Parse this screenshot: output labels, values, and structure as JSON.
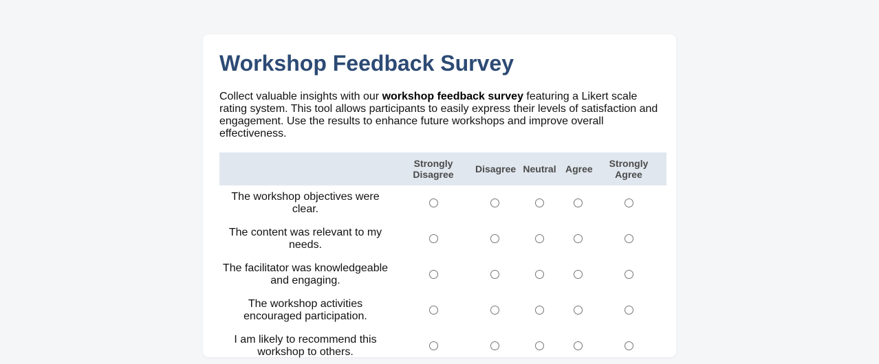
{
  "survey": {
    "title": "Workshop Feedback Survey",
    "intro_before": "Collect valuable insights with our ",
    "intro_bold": "workshop feedback survey",
    "intro_after": " featuring a Likert scale rating system. This tool allows participants to easily express their levels of satisfaction and engagement. Use the results to enhance future workshops and improve overall effectiveness."
  },
  "scale": [
    {
      "label": "Strongly Disagree"
    },
    {
      "label": "Disagree"
    },
    {
      "label": "Neutral"
    },
    {
      "label": "Agree"
    },
    {
      "label": "Strongly Agree"
    }
  ],
  "questions": [
    {
      "text": "The workshop objectives were clear."
    },
    {
      "text": "The content was relevant to my needs."
    },
    {
      "text": "The facilitator was knowledgeable and engaging."
    },
    {
      "text": "The workshop activities encouraged participation."
    },
    {
      "text": "I am likely to recommend this workshop to others."
    }
  ],
  "colors": {
    "title": "#2c4a74",
    "header_bg": "#e1e7ee",
    "page_bg": "#f5f6f8"
  }
}
